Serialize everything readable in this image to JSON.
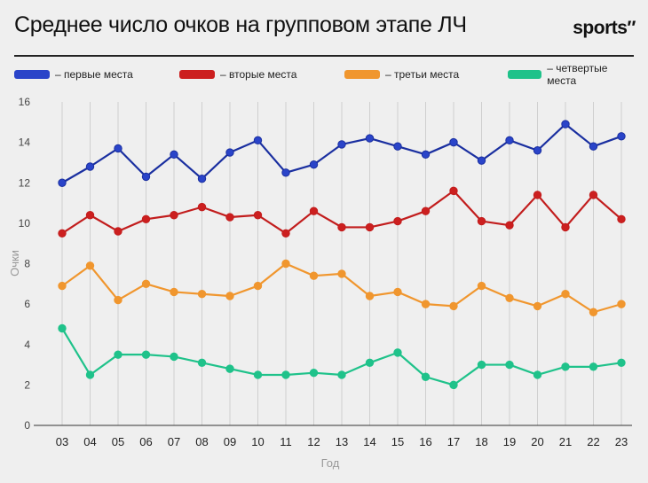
{
  "header": {
    "title": "Среднее число очков на групповом этапе ЛЧ",
    "brand": "sports″"
  },
  "legend": [
    {
      "label": "– первые места",
      "color": "#2a44c9"
    },
    {
      "label": "– вторые места",
      "color": "#cc1f1f"
    },
    {
      "label": "– третьи места",
      "color": "#f0962e"
    },
    {
      "label": "– четвертые места",
      "color": "#1fc28a"
    }
  ],
  "chart_data": {
    "type": "line",
    "xlabel": "Год",
    "ylabel": "Очки",
    "ylim": [
      0,
      16
    ],
    "yticks": [
      0,
      2,
      4,
      6,
      8,
      10,
      12,
      14,
      16
    ],
    "categories": [
      "03",
      "04",
      "05",
      "06",
      "07",
      "08",
      "09",
      "10",
      "11",
      "12",
      "13",
      "14",
      "15",
      "16",
      "17",
      "18",
      "19",
      "20",
      "21",
      "22",
      "23"
    ],
    "grid": "vertical",
    "series": [
      {
        "name": "– первые места",
        "color": "#2a44c9",
        "line_color": "#1a2fa0",
        "values": [
          12.0,
          12.8,
          13.7,
          12.3,
          13.4,
          12.2,
          13.5,
          14.1,
          12.5,
          12.9,
          13.9,
          14.2,
          13.8,
          13.4,
          14.0,
          13.1,
          14.1,
          13.6,
          14.9,
          13.8,
          14.3
        ]
      },
      {
        "name": "– вторые места",
        "color": "#cc1f1f",
        "line_color": "#c21d1d",
        "values": [
          9.5,
          10.4,
          9.6,
          10.2,
          10.4,
          10.8,
          10.3,
          10.4,
          9.5,
          10.6,
          9.8,
          9.8,
          10.1,
          10.6,
          11.6,
          10.1,
          9.9,
          11.4,
          9.8,
          11.4,
          10.2
        ]
      },
      {
        "name": "– третьи места",
        "color": "#f0962e",
        "line_color": "#f0962e",
        "values": [
          6.9,
          7.9,
          6.2,
          7.0,
          6.6,
          6.5,
          6.4,
          6.9,
          8.0,
          7.4,
          7.5,
          6.4,
          6.6,
          6.0,
          5.9,
          6.9,
          6.3,
          5.9,
          6.5,
          5.6,
          6.0
        ]
      },
      {
        "name": "– четвертые места",
        "color": "#1fc28a",
        "line_color": "#1fc28a",
        "values": [
          4.8,
          2.5,
          3.5,
          3.5,
          3.4,
          3.1,
          2.8,
          2.5,
          2.5,
          2.6,
          2.5,
          3.1,
          3.6,
          2.4,
          2.0,
          3.0,
          3.0,
          2.5,
          2.9,
          2.9,
          3.1
        ]
      }
    ]
  }
}
